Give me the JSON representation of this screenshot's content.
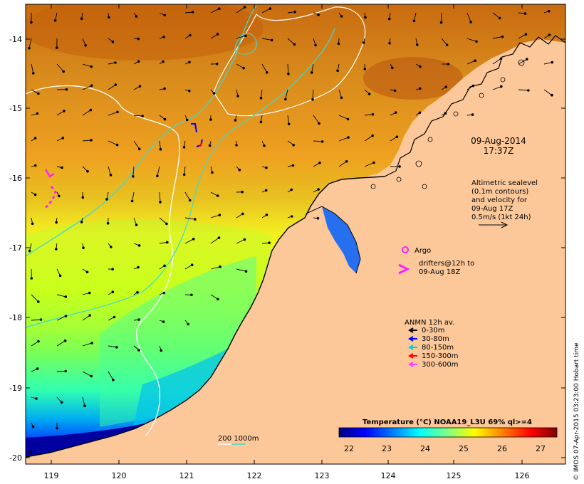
{
  "map": {
    "date_line1": "09-Aug-2014",
    "date_line2": "17:37Z",
    "longitude_labels": [
      "119",
      "120",
      "121",
      "122",
      "123",
      "124",
      "125",
      "126"
    ],
    "latitude_labels": [
      "-14",
      "-15",
      "-16",
      "-17",
      "-18",
      "-19",
      "-20"
    ],
    "altimetry_note": [
      "Altimetric sealevel",
      "(0.1m contours)",
      "and velocity for",
      "09-Aug 17Z",
      "0.5m/s (1kt 24h)"
    ],
    "argo_label": "Argo",
    "drifters_line1": "drifters@12h to",
    "drifters_line2": "09-Aug 18Z",
    "anmn_title": "ANMN 12h av.",
    "anmn_legend": [
      {
        "label": "0-30m",
        "color": "#000000"
      },
      {
        "label": "30-80m",
        "color": "#0000ff"
      },
      {
        "label": "80-150m",
        "color": "#00d0d0"
      },
      {
        "label": "150-300m",
        "color": "#ff0000"
      },
      {
        "label": "300-600m",
        "color": "#ff40ff"
      }
    ],
    "colorbar_title": "Temperature (°C) NOAA19_L3U 69% ql>=4",
    "colorbar_ticks": [
      "22",
      "23",
      "24",
      "25",
      "26",
      "27"
    ],
    "colorbar_colors": [
      "#00007f",
      "#0000ff",
      "#0080ff",
      "#00ffff",
      "#80ff80",
      "#ffff00",
      "#ff8000",
      "#ff0000",
      "#7f0000"
    ],
    "isobath_legend": "200  1000m",
    "copyright": "© IMOS 07-Apr-2015 03:23:00 Hobart time",
    "land_color": "#fcc89a",
    "isobath_200_color": "#ffffff",
    "isobath_1000_color": "#40d8d0"
  }
}
